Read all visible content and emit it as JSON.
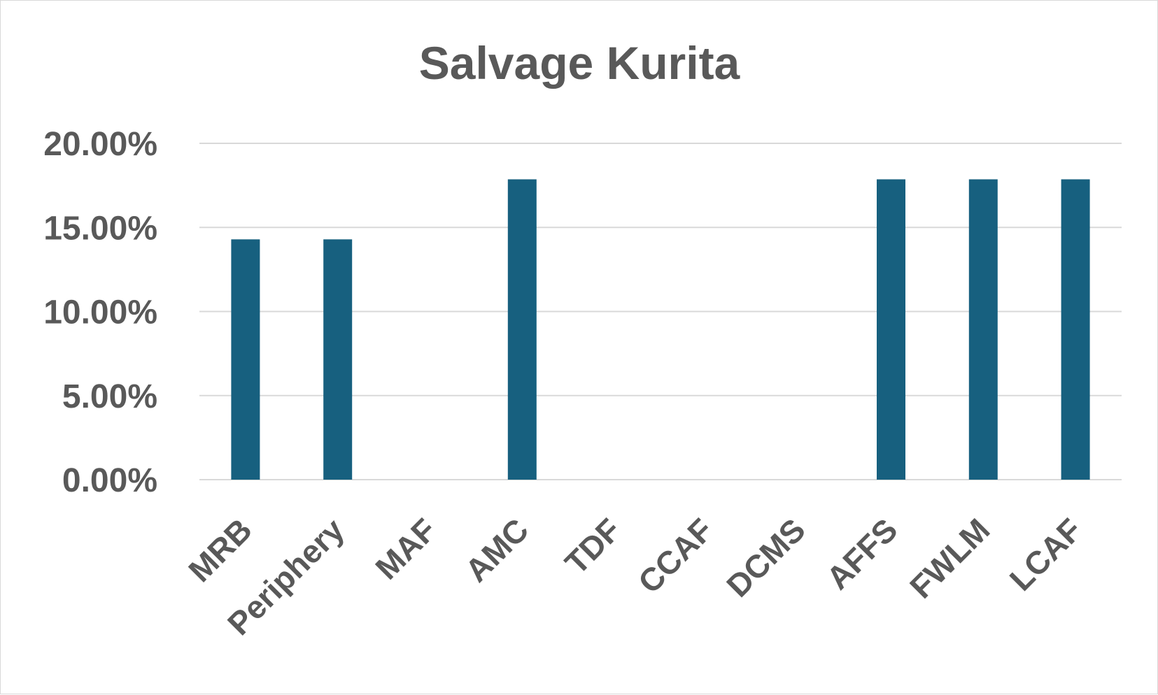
{
  "chart_data": {
    "type": "bar",
    "title": "Salvage Kurita",
    "xlabel": "",
    "ylabel": "",
    "categories": [
      "MRB",
      "Periphery",
      "MAF",
      "AMC",
      "TDF",
      "CCAF",
      "DCMS",
      "AFFS",
      "FWLM",
      "LCAF"
    ],
    "series": [
      {
        "values": [
          14.29,
          14.29,
          0,
          17.86,
          0,
          0,
          0,
          17.86,
          17.86,
          17.86
        ],
        "color": "#17607f"
      }
    ],
    "ylim": [
      0,
      20
    ],
    "yticks": [
      0,
      5,
      10,
      15,
      20
    ],
    "ytick_labels": [
      "0.00%",
      "5.00%",
      "10.00%",
      "15.00%",
      "20.00%"
    ],
    "grid": true,
    "gridline_color": "#d9d9d9",
    "legend": "none"
  }
}
